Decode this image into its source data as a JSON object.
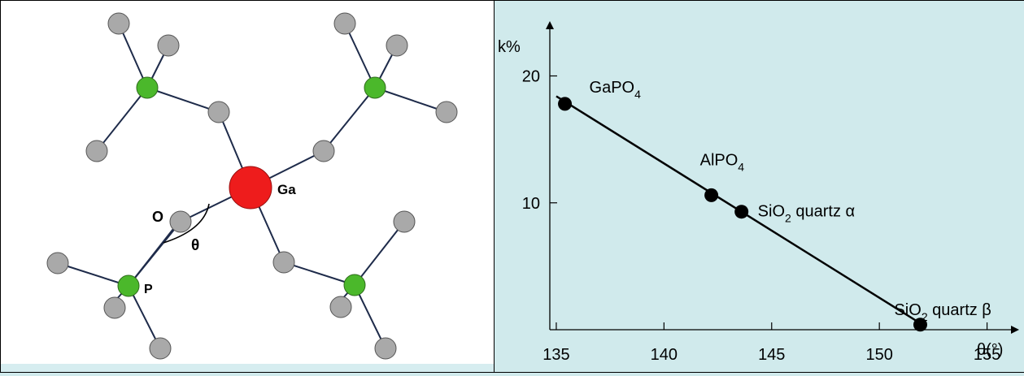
{
  "structure": {
    "labels": {
      "o": "O",
      "theta": "θ",
      "ga": "Ga",
      "p": "P"
    },
    "colors": {
      "ga": "#ee1c1c",
      "p": "#4bb82b",
      "o": "#a9a9a9",
      "bond": "#1e2b4a"
    }
  },
  "chart_data": {
    "type": "line",
    "ylabel": "k%",
    "xlabel": "θ(°)",
    "xticks": [
      135,
      140,
      145,
      150,
      155
    ],
    "yticks": [
      10,
      20
    ],
    "xlim": [
      134.7,
      156.3
    ],
    "ylim": [
      0,
      24
    ],
    "points": [
      {
        "x": 135.4,
        "y": 17.8,
        "label_main": "GaPO",
        "label_sub": "4",
        "label_tail": ""
      },
      {
        "x": 142.2,
        "y": 10.6,
        "label_main": "AlPO",
        "label_sub": "4",
        "label_tail": ""
      },
      {
        "x": 143.6,
        "y": 9.3,
        "label_main": "SiO",
        "label_sub": "2",
        "label_tail": " quartz α"
      },
      {
        "x": 151.9,
        "y": 0.4,
        "label_main": "SiO",
        "label_sub": "2",
        "label_tail": " quartz β"
      }
    ],
    "fit_line": {
      "x": [
        135.0,
        152.0
      ],
      "y": [
        18.4,
        0.4
      ]
    }
  }
}
